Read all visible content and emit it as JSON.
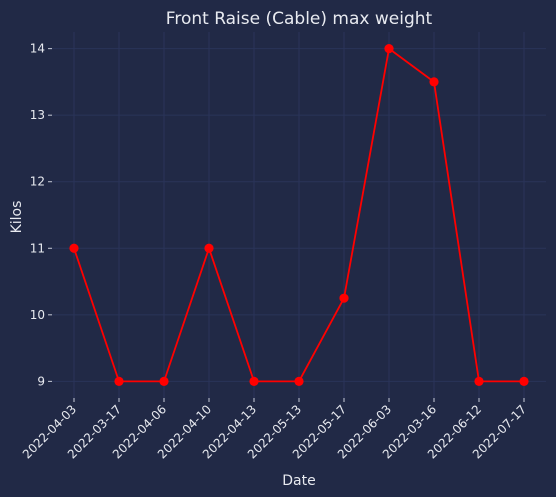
{
  "chart_data": {
    "type": "line",
    "title": "Front Raise (Cable) max weight",
    "xlabel": "Date",
    "ylabel": "Kilos",
    "categories": [
      "2022-04-03",
      "2022-03-17",
      "2022-04-06",
      "2022-04-10",
      "2022-04-13",
      "2022-05-13",
      "2022-05-17",
      "2022-06-03",
      "2022-03-16",
      "2022-06-12",
      "2022-07-17"
    ],
    "series": [
      {
        "name": "max weight",
        "values": [
          11,
          9,
          9,
          11,
          9,
          9,
          10.25,
          14,
          13.5,
          9,
          9
        ]
      }
    ],
    "ylim": [
      8.75,
      14.25
    ],
    "yticks": [
      9,
      10,
      11,
      12,
      13,
      14
    ],
    "grid": true,
    "colors": {
      "background": "#212946",
      "grid": "#2A3459",
      "line": "#FF0000",
      "text": "#e8eaf0"
    }
  }
}
